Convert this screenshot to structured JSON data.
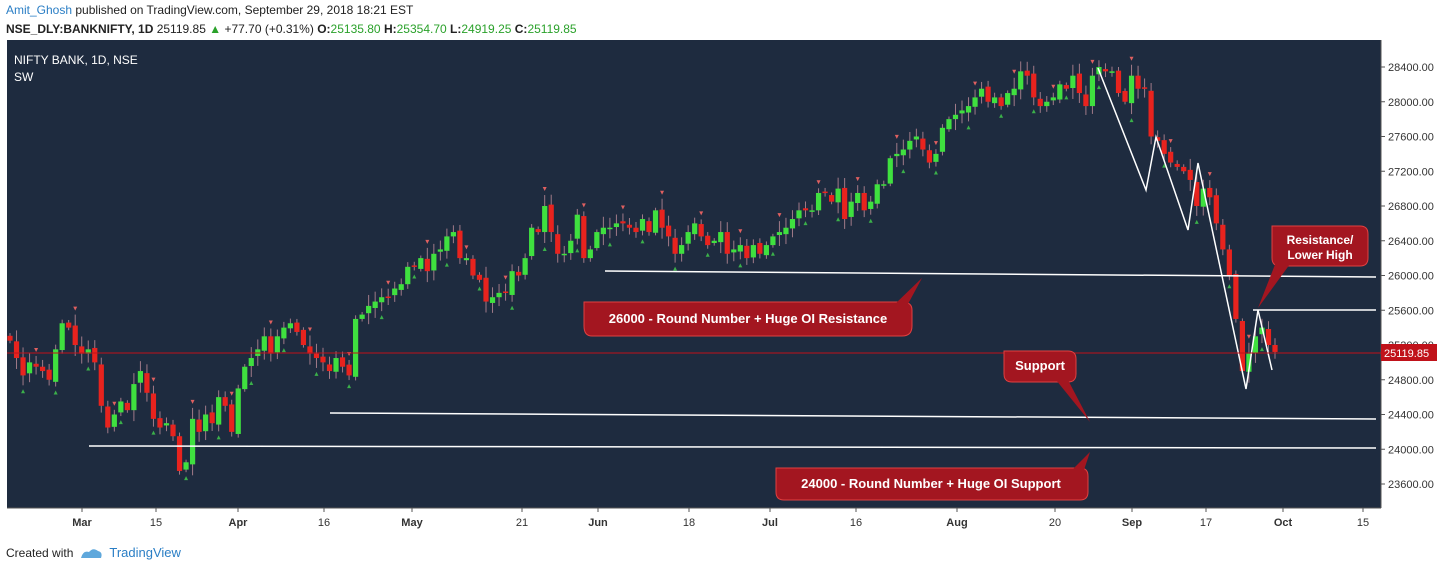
{
  "header": {
    "author": "Amit_Ghosh",
    "published": "published on TradingView.com, September 29, 2018 18:21 EST",
    "symbol": "NSE_DLY:BANKNIFTY, 1D",
    "last": "25119.85",
    "change_arrow": "▲",
    "change": "+77.70 (+0.31%)",
    "o_label": "O:",
    "o_val": "25135.80",
    "h_label": "H:",
    "h_val": "25354.70",
    "l_label": "L:",
    "l_val": "24919.25",
    "c_label": "C:",
    "c_val": "25119.85"
  },
  "pane": {
    "title": "NIFTY BANK, 1D, NSE",
    "indicator": "SW"
  },
  "footer": {
    "created_with": "Created with",
    "brand": "TradingView"
  },
  "colors": {
    "background": "#1e2b3f",
    "up": "#3fe03f",
    "down": "#e8231e",
    "annotation": "#a31620",
    "line": "#ffffff",
    "price_tag": "#c0121a"
  },
  "chart_data": {
    "type": "candlestick",
    "ylim": [
      23300,
      28700
    ],
    "y_ticks": [
      "28400.00",
      "28000.00",
      "27600.00",
      "27200.00",
      "26800.00",
      "26400.00",
      "26000.00",
      "25600.00",
      "25200.00",
      "24800.00",
      "24400.00",
      "24000.00",
      "23600.00"
    ],
    "x_ticks": [
      "Mar",
      "15",
      "Apr",
      "16",
      "May",
      "21",
      "Jun",
      "18",
      "Jul",
      "16",
      "Aug",
      "20",
      "Sep",
      "17",
      "Oct",
      "15"
    ],
    "last_price_label": "25119.85",
    "annotations": [
      {
        "text": "26000 - Round Number + Huge OI Resistance"
      },
      {
        "text": "Support"
      },
      {
        "text": "24000 - Round Number + Huge OI Support"
      },
      {
        "text": "Resistance/ Lower High"
      }
    ],
    "closes": [
      25250,
      25050,
      24850,
      25000,
      24950,
      24900,
      24800,
      25150,
      25450,
      25400,
      25200,
      25100,
      25150,
      25000,
      24500,
      24250,
      24400,
      24550,
      24450,
      24750,
      24900,
      24650,
      24350,
      24250,
      24300,
      24150,
      23750,
      23850,
      24350,
      24200,
      24400,
      24300,
      24600,
      24500,
      24200,
      24700,
      24950,
      25050,
      25150,
      25300,
      25100,
      25300,
      25400,
      25450,
      25350,
      25200,
      25100,
      25050,
      25000,
      24900,
      25050,
      24950,
      24850,
      25500,
      25550,
      25650,
      25700,
      25750,
      25750,
      25850,
      25900,
      26100,
      26100,
      26200,
      26050,
      26250,
      26300,
      26450,
      26500,
      26200,
      26200,
      26000,
      25950,
      25700,
      25750,
      25800,
      25800,
      26050,
      26000,
      26200,
      26550,
      26500,
      26800,
      26500,
      26250,
      26250,
      26400,
      26700,
      26200,
      26300,
      26500,
      26550,
      26550,
      26600,
      26600,
      26550,
      26500,
      26650,
      26500,
      26750,
      26550,
      26450,
      26250,
      26350,
      26500,
      26600,
      26450,
      26350,
      26400,
      26500,
      26250,
      26300,
      26350,
      26200,
      26350,
      26250,
      26350,
      26450,
      26500,
      26550,
      26650,
      26750,
      26750,
      26750,
      26950,
      26950,
      26850,
      27000,
      26650,
      26850,
      26950,
      26750,
      26850,
      27050,
      27050,
      27350,
      27400,
      27450,
      27550,
      27600,
      27450,
      27300,
      27400,
      27700,
      27800,
      27850,
      27900,
      27950,
      28050,
      28150,
      28000,
      28050,
      27950,
      28100,
      28150,
      28350,
      28300,
      28050,
      27950,
      28000,
      28050,
      28200,
      28150,
      28300,
      28100,
      27950,
      28300,
      28400,
      28350,
      28350,
      28100,
      28000,
      28300,
      28150,
      28150,
      27600,
      27550,
      27400,
      27300,
      27250,
      27200,
      27100,
      26800,
      27000,
      26900,
      26600,
      26300,
      26000,
      25500,
      24900,
      25100,
      25300,
      25400,
      25200,
      25119.85
    ]
  }
}
